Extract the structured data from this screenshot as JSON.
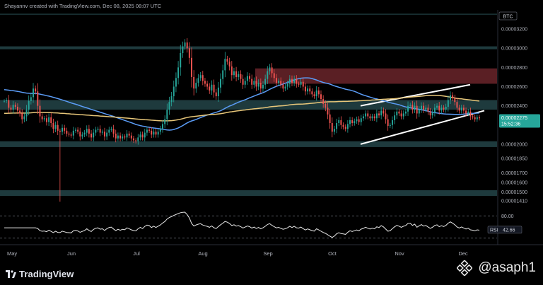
{
  "header": {
    "author": "Shayannv",
    "platform": "TradingView.com",
    "date_text": "Dec 08, 2025 08:07 UTC",
    "separator1": " created with ",
    "separator2": ", "
  },
  "footer": {
    "brand": "TradingView",
    "watermark_handle": "@asaph1",
    "watermark_icon": "binance-diamond-icon"
  },
  "colors": {
    "background": "#000000",
    "up_candle": "#26a69a",
    "down_candle": "#ef5350",
    "sma_fast": "#5b9cf6",
    "sma_slow": "#e8c77a",
    "zone_teal": "#1e3a3d",
    "zone_red": "#5a1f24",
    "price_badge": "#26a69a",
    "channel": "#ffffff",
    "rsi_line": "#e6e6e6"
  },
  "chart_data": {
    "type": "candlestick",
    "symbol": "BTC",
    "timeframe": "1D",
    "x_labels": [
      "May",
      "Jun",
      "Jul",
      "Aug",
      "Sep",
      "Oct",
      "Nov",
      "Dec"
    ],
    "price_ticks": [
      "0.00003200",
      "0.00003000",
      "0.00002800",
      "0.00002600",
      "0.00002400",
      "0.00002000",
      "0.00001850",
      "0.00001700",
      "0.00001600",
      "0.00001500",
      "0.00001410"
    ],
    "current_price": "0.00002275",
    "countdown": "15:52:36",
    "ylim": [
      1.35e-05,
      3.4e-05
    ],
    "zones_teal": [
      [
        3.35e-05,
        3.36e-05
      ],
      [
        2.99e-05,
        3.02e-05
      ],
      [
        2.36e-05,
        2.46e-05
      ],
      [
        1.97e-05,
        2.03e-05
      ],
      [
        1.46e-05,
        1.52e-05
      ]
    ],
    "zone_red": [
      2.63e-05,
      2.79e-05
    ],
    "zone_red_start_label": "Sep",
    "channel_upper": [
      [
        "Oct",
        2.4e-05
      ],
      [
        "Dec",
        2.62e-05
      ]
    ],
    "channel_lower": [
      [
        "Oct",
        2e-05
      ],
      [
        "Dec",
        2.32e-05
      ]
    ],
    "close_series": [
      2.45e-05,
      2.46e-05,
      2.38e-05,
      2.36e-05,
      2.41e-05,
      2.39e-05,
      2.35e-05,
      2.32e-05,
      2.26e-05,
      2.29e-05,
      2.36e-05,
      2.45e-05,
      2.49e-05,
      2.58e-05,
      2.55e-05,
      2.4e-05,
      2.29e-05,
      2.26e-05,
      2.27e-05,
      2.23e-05,
      2.28e-05,
      2.22e-05,
      2.16e-05,
      2.2e-05,
      2.14e-05,
      2.13e-05,
      2.17e-05,
      2.14e-05,
      2.11e-05,
      2.1e-05,
      2.09e-05,
      2.14e-05,
      2.15e-05,
      2.13e-05,
      2.08e-05,
      2.1e-05,
      2.12e-05,
      2.16e-05,
      2.11e-05,
      2.07e-05,
      2.12e-05,
      2.15e-05,
      2.16e-05,
      2.12e-05,
      2.13e-05,
      2.08e-05,
      2.12e-05,
      2.15e-05,
      2.16e-05,
      2.11e-05,
      2.06e-05,
      2.09e-05,
      2.06e-05,
      2.08e-05,
      2.07e-05,
      2.11e-05,
      2.09e-05,
      2.06e-05,
      2.04e-05,
      2.03e-05,
      2.07e-05,
      2.1e-05,
      2.07e-05,
      2.12e-05,
      2.15e-05,
      2.14e-05,
      2.1e-05,
      2.13e-05,
      2.1e-05,
      2.13e-05,
      2.16e-05,
      2.21e-05,
      2.26e-05,
      2.36e-05,
      2.44e-05,
      2.5e-05,
      2.6e-05,
      2.69e-05,
      2.8e-05,
      2.95e-05,
      3.02e-05,
      3.06e-05,
      3e-05,
      2.9e-05,
      2.7e-05,
      2.58e-05,
      2.64e-05,
      2.69e-05,
      2.72e-05,
      2.66e-05,
      2.63e-05,
      2.6e-05,
      2.56e-05,
      2.62e-05,
      2.54e-05,
      2.5e-05,
      2.59e-05,
      2.68e-05,
      2.77e-05,
      2.89e-05,
      2.86e-05,
      2.81e-05,
      2.72e-05,
      2.76e-05,
      2.7e-05,
      2.73e-05,
      2.68e-05,
      2.62e-05,
      2.66e-05,
      2.71e-05,
      2.68e-05,
      2.62e-05,
      2.66e-05,
      2.6e-05,
      2.64e-05,
      2.58e-05,
      2.62e-05,
      2.68e-05,
      2.76e-05,
      2.8e-05,
      2.74e-05,
      2.69e-05,
      2.64e-05,
      2.66e-05,
      2.62e-05,
      2.58e-05,
      2.6e-05,
      2.63e-05,
      2.68e-05,
      2.64e-05,
      2.68e-05,
      2.63e-05,
      2.62e-05,
      2.65e-05,
      2.6e-05,
      2.55e-05,
      2.58e-05,
      2.55e-05,
      2.52e-05,
      2.5e-05,
      2.56e-05,
      2.52e-05,
      2.47e-05,
      2.42e-05,
      2.38e-05,
      2.31e-05,
      2.22e-05,
      2.13e-05,
      2.16e-05,
      2.22e-05,
      2.25e-05,
      2.2e-05,
      2.18e-05,
      2.16e-05,
      2.21e-05,
      2.25e-05,
      2.22e-05,
      2.24e-05,
      2.26e-05,
      2.23e-05,
      2.27e-05,
      2.29e-05,
      2.32e-05,
      2.29e-05,
      2.27e-05,
      2.29e-05,
      2.27e-05,
      2.32e-05,
      2.3e-05,
      2.35e-05,
      2.32e-05,
      2.26e-05,
      2.19e-05,
      2.2e-05,
      2.25e-05,
      2.3e-05,
      2.34e-05,
      2.32e-05,
      2.29e-05,
      2.32e-05,
      2.34e-05,
      2.4e-05,
      2.41e-05,
      2.36e-05,
      2.4e-05,
      2.32e-05,
      2.36e-05,
      2.4e-05,
      2.36e-05,
      2.38e-05,
      2.34e-05,
      2.3e-05,
      2.33e-05,
      2.38e-05,
      2.4e-05,
      2.35e-05,
      2.38e-05,
      2.36e-05,
      2.39e-05,
      2.46e-05,
      2.51e-05,
      2.48e-05,
      2.44e-05,
      2.38e-05,
      2.35e-05,
      2.38e-05,
      2.35e-05,
      2.32e-05,
      2.34e-05,
      2.29e-05,
      2.28e-05,
      2.26e-05,
      2.28e-05,
      2.27e-05
    ],
    "spike_low": 1.4e-05,
    "rsi": {
      "label": "RSI",
      "value": "42.66",
      "level_label": "80.00",
      "levels": [
        80,
        20
      ]
    }
  }
}
